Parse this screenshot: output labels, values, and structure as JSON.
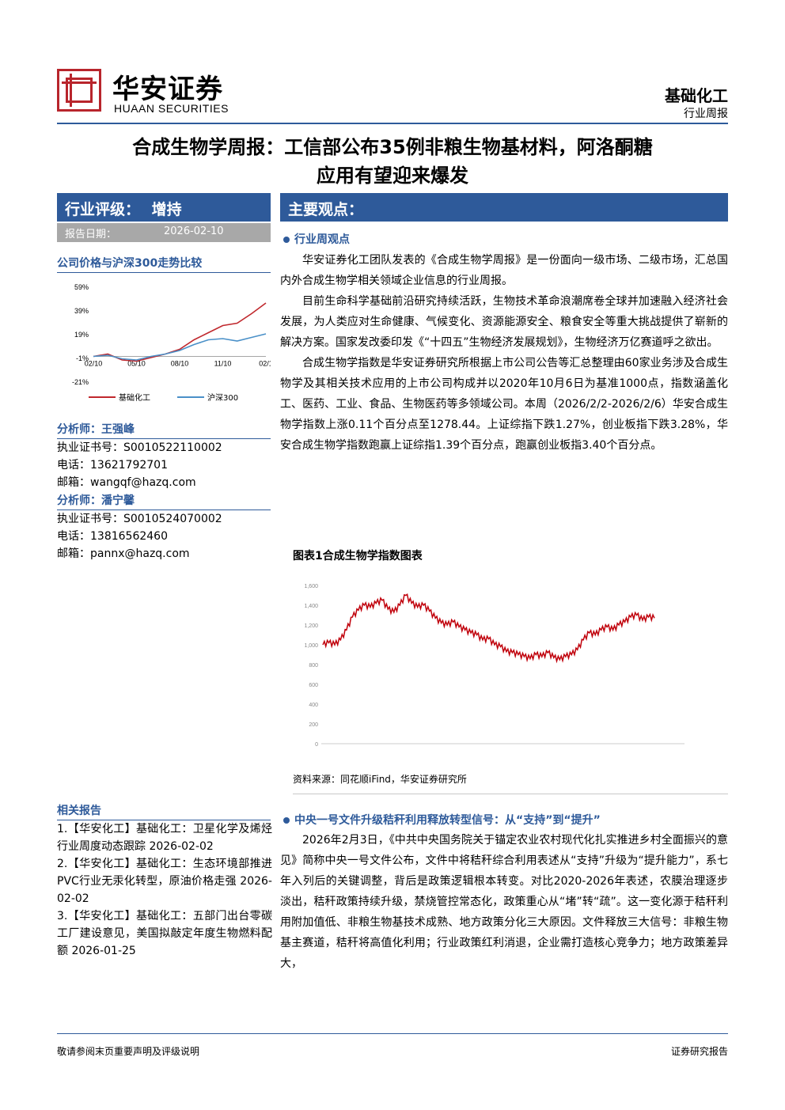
{
  "header": {
    "logo_cn": "华安证券",
    "logo_en": "HUAAN SECURITIES",
    "sector": "基础化工",
    "report_type": "行业周报"
  },
  "title": {
    "line1": "合成生物学周报：工信部公布35例非粮生物基材料，阿洛酮糖",
    "line2": "应用有望迎来爆发"
  },
  "rating": {
    "label": "行业评级：",
    "value": "增持",
    "date_label": "报告日期：",
    "date": "2026-02-10"
  },
  "main_points_label": "主要观点：",
  "side_chart": {
    "title": "公司价格与沪深300走势比较",
    "y_ticks": [
      "59%",
      "39%",
      "19%",
      "-1%",
      "-21%"
    ],
    "x_ticks": [
      "02/10",
      "05/10",
      "08/10",
      "11/10",
      "02/1"
    ],
    "legend": [
      "基础化工",
      "沪深300"
    ],
    "colors": {
      "sector": "#c0282d",
      "index": "#4a90c8"
    }
  },
  "analysts": [
    {
      "heading": "分析师：王强峰",
      "license": "执业证书号：S0010522110002",
      "phone": "电话：13621792701",
      "email": "邮箱：wangqf@hazq.com"
    },
    {
      "heading": "分析师：潘宁馨",
      "license": "执业证书号：S0010524070002",
      "phone": "电话：13816562460",
      "email": "邮箱：pannx@hazq.com"
    }
  ],
  "related": {
    "heading": "相关报告",
    "items": [
      "1.【华安化工】基础化工：卫星化学及烯烃行业周度动态跟踪 2026-02-02",
      "2.【华安化工】基础化工：生态环境部推进PVC行业无汞化转型，原油价格走强 2026-02-02",
      "3.【华安化工】基础化工：五部门出台零碳工厂建设意见，美国拟敲定年度生物燃料配额 2026-01-25"
    ]
  },
  "section1": {
    "heading": "行业周观点",
    "paras": [
      "华安证券化工团队发表的《合成生物学周报》是一份面向一级市场、二级市场，汇总国内外合成生物学相关领域企业信息的行业周报。",
      "目前生命科学基础前沿研究持续活跃，生物技术革命浪潮席卷全球并加速融入经济社会发展，为人类应对生命健康、气候变化、资源能源安全、粮食安全等重大挑战提供了崭新的解决方案。国家发改委印发《“十四五”生物经济发展规划》，生物经济万亿赛道呼之欲出。",
      "合成生物学指数是华安证券研究所根据上市公司公告等汇总整理由60家业务涉及合成生物学及其相关技术应用的上市公司构成并以2020年10月6日为基准1000点，指数涵盖化工、医药、工业、食品、生物医药等多领域公司。本周（2026/2/2-2026/2/6）华安合成生物学指数上涨0.11个百分点至1278.44。上证综指下跌1.27%，创业板指下跌3.28%，华安合成生物学指数跑赢上证综指1.39个百分点，跑赢创业板指3.40个百分点。"
    ]
  },
  "figure1": {
    "title": "图表1合成生物学指数图表",
    "source": "资料来源：同花顺iFind，华安证券研究所",
    "line_color": "#c0000b"
  },
  "chart_data": [
    {
      "type": "line",
      "title": "",
      "series": [
        {
          "name": "基础化工",
          "x": [
            "02/10",
            "03/10",
            "04/10",
            "05/10",
            "06/10",
            "07/10",
            "08/10",
            "09/10",
            "10/10",
            "11/10",
            "12/10",
            "01/10",
            "02/1"
          ],
          "values": [
            0,
            2,
            -3,
            -4,
            -1,
            2,
            6,
            14,
            20,
            26,
            28,
            36,
            45
          ]
        },
        {
          "name": "沪深300",
          "x": [
            "02/10",
            "03/10",
            "04/10",
            "05/10",
            "06/10",
            "07/10",
            "08/10",
            "09/10",
            "10/10",
            "11/10",
            "12/10",
            "01/10",
            "02/1"
          ],
          "values": [
            0,
            1,
            -2,
            -3,
            0,
            2,
            5,
            10,
            14,
            15,
            13,
            16,
            19
          ]
        }
      ],
      "ylim": [
        -21,
        59
      ],
      "y_ticks": [
        "59%",
        "39%",
        "19%",
        "-1%",
        "-21%"
      ],
      "x_ticks": [
        "02/10",
        "05/10",
        "08/10",
        "11/10",
        "02/1"
      ]
    },
    {
      "type": "line",
      "title": "",
      "series": [
        {
          "name": "",
          "values": [
            1000,
            1020,
            1000,
            1050,
            1150,
            1280,
            1350,
            1400,
            1380,
            1420,
            1450,
            1360,
            1330,
            1400,
            1500,
            1420,
            1380,
            1400,
            1340,
            1270,
            1220,
            1200,
            1230,
            1180,
            1150,
            1120,
            1100,
            1050,
            1060,
            1000,
            980,
            930,
            920,
            900,
            880,
            860,
            900,
            880,
            920,
            870,
            850,
            880,
            900,
            950,
            1050,
            1120,
            1100,
            1150,
            1180,
            1150,
            1200,
            1230,
            1280,
            1300,
            1250,
            1280,
            1270
          ]
        }
      ],
      "ylim": [
        0,
        1600
      ],
      "y_ticks": [
        "1,600",
        "1,400",
        "1,200",
        "1,000",
        "800",
        "600",
        "400",
        "200",
        "0"
      ]
    }
  ],
  "section2": {
    "heading": "中央一号文件升级秸秆利用释放转型信号：从“支持”到“提升”",
    "para": "2026年2月3日，《中共中央国务院关于锚定农业农村现代化扎实推进乡村全面振兴的意见》简称中央一号文件公布，文件中将秸秆综合利用表述从“支持”升级为“提升能力”，系七年入列后的关键调整，背后是政策逻辑根本转变。对比2020-2026年表述，农膜治理逐步淡出，秸秆政策持续升级，禁烧管控常态化，政策重心从“堵”转“疏”。这一变化源于秸秆利用附加值低、非粮生物基技术成熟、地方政策分化三大原因。文件释放三大信号：非粮生物基主赛道，秸秆将高值化利用；行业政策红利消退，企业需打造核心竞争力；地方政策差异大，"
  },
  "footer": {
    "left": "敬请参阅末页重要声明及评级说明",
    "right": "证券研究报告"
  }
}
